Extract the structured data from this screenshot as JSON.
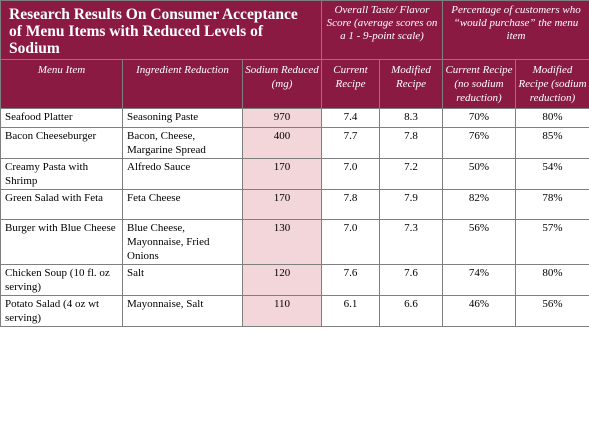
{
  "title": "Research Results On Consumer Acceptance of Menu Items with Reduced Levels of Sodium",
  "group_headers": {
    "taste": "Overall Taste/ Flavor Score (average scores on a 1 - 9-point scale)",
    "purchase": "Percentage of customers who “would purchase” the menu item"
  },
  "columns": {
    "menu_item": "Menu Item",
    "ingredient": "Ingredient Reduction",
    "sodium": "Sodium Reduced (mg)",
    "taste_current": "Current Recipe",
    "taste_modified": "Modified Recipe",
    "purchase_current": "Current Recipe (no sodium reduction)",
    "purchase_modified": "Modified Recipe (sodium reduction)"
  },
  "colors": {
    "header_bg": "#8b1a43",
    "sodium_bg": "#f3d6d9"
  },
  "rows": [
    {
      "item": "Seafood Platter",
      "ingredient": "Seasoning Paste",
      "sodium": "970",
      "taste_current": "7.4",
      "taste_modified": "8.3",
      "purchase_current": "70%",
      "purchase_modified": "80%"
    },
    {
      "item": "Bacon Cheeseburger",
      "ingredient": "Bacon, Cheese, Margarine Spread",
      "sodium": "400",
      "taste_current": "7.7",
      "taste_modified": "7.8",
      "purchase_current": "76%",
      "purchase_modified": "85%"
    },
    {
      "item": "Creamy Pasta with Shrimp",
      "ingredient": "Alfredo Sauce",
      "sodium": "170",
      "taste_current": "7.0",
      "taste_modified": "7.2",
      "purchase_current": "50%",
      "purchase_modified": "54%"
    },
    {
      "item": "Green Salad with Feta",
      "ingredient": "Feta Cheese",
      "sodium": "170",
      "taste_current": "7.8",
      "taste_modified": "7.9",
      "purchase_current": "82%",
      "purchase_modified": "78%"
    },
    {
      "item": "Burger with Blue Cheese",
      "ingredient": "Blue Cheese, Mayonnaise, Fried Onions",
      "sodium": "130",
      "taste_current": "7.0",
      "taste_modified": "7.3",
      "purchase_current": "56%",
      "purchase_modified": "57%"
    },
    {
      "item": "Chicken  Soup (10 fl. oz serving)",
      "ingredient": "Salt",
      "sodium": "120",
      "taste_current": "7.6",
      "taste_modified": "7.6",
      "purchase_current": "74%",
      "purchase_modified": "80%"
    },
    {
      "item": "Potato Salad (4 oz wt serving)",
      "ingredient": "Mayonnaise, Salt",
      "sodium": "110",
      "taste_current": "6.1",
      "taste_modified": "6.6",
      "purchase_current": "46%",
      "purchase_modified": "56%"
    }
  ]
}
